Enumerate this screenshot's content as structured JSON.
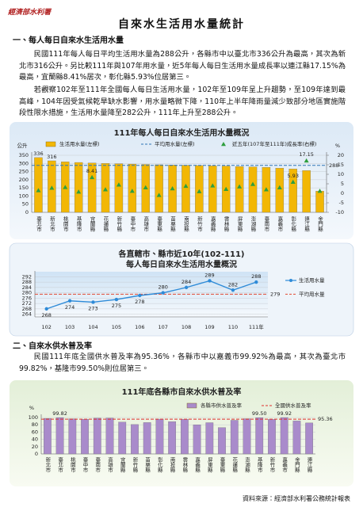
{
  "header": {
    "logo": "經濟部水利署",
    "title": "自來水生活用水量統計"
  },
  "sections": [
    {
      "heading": "一、每人每日自來水生活用水量",
      "paragraphs": [
        "民國111年每人每日平均生活用水量為288公升，各縣市中以臺北市336公升為最高，其次為新北市316公升。另比較111年與107年用水量，近5年每人每日生活用水量成長率以連江縣17.15%為最高，宜蘭縣8.41%居次，彰化縣5.93%位居第三。",
        "若觀察102年至111年全國每人每日生活用水量，102年至109年呈上升趨勢，至109年達到最高峰，104年因受氣候乾旱缺水影響，用水量略微下降，110年上半年降雨量減少致部分地區實施階段性限水措施，生活用水量降至282公升，111年上升至288公升。"
      ]
    },
    {
      "heading": "二、自來水供水普及率",
      "paragraphs": [
        "民國111年底全國供水普及率為95.36%，各縣市中以嘉義市99.92%為最高，其次為臺北市99.82%，基隆市99.50%則位居第三。"
      ]
    }
  ],
  "chart_data": [
    {
      "type": "combo",
      "title": "111年每人每日自來水生活用水量概況",
      "y_label": "公升",
      "y2_label": "%",
      "categories": [
        "臺北市",
        "新北市",
        "桃園市",
        "基隆市",
        "宜蘭縣",
        "花蓮縣",
        "新竹縣",
        "臺中市",
        "高雄市",
        "臺東縣",
        "苗栗縣",
        "南投縣",
        "新竹市",
        "嘉義縣",
        "雲林縣",
        "屏東縣",
        "澎湖縣",
        "臺南市",
        "嘉義市",
        "彰化縣",
        "連江縣",
        "金門縣"
      ],
      "series": [
        {
          "name": "生活用水量(左標)",
          "color": "#f2b705",
          "values": [
            336,
            316,
            310,
            306,
            303,
            300,
            298,
            296,
            294,
            292,
            290,
            289,
            287,
            285,
            284,
            281,
            279,
            276,
            271,
            266,
            256,
            130
          ],
          "value_labels": [
            "336",
            "316",
            null,
            null,
            null,
            null,
            null,
            null,
            null,
            null,
            null,
            null,
            null,
            null,
            null,
            null,
            null,
            null,
            null,
            null,
            null,
            null
          ]
        },
        {
          "name": "近五年(107年至111年)成長率(右標)",
          "color": "#2e9e3e",
          "axis": "y2",
          "marker": "triangle",
          "values": [
            1.5,
            2.8,
            3.2,
            0.8,
            8.41,
            2.0,
            4.5,
            1.2,
            3.0,
            -1.0,
            2.5,
            3.8,
            1.0,
            4.0,
            2.2,
            3.5,
            4.8,
            2.0,
            3.0,
            5.93,
            17.15,
            1.2
          ],
          "value_labels": [
            null,
            null,
            null,
            null,
            "8.41",
            null,
            null,
            null,
            null,
            null,
            null,
            null,
            null,
            null,
            null,
            null,
            null,
            null,
            null,
            "5.93",
            "17.15",
            null
          ]
        }
      ],
      "reference_line": {
        "name": "平均用水量(左標)",
        "color": "#2e75b6",
        "value": 288
      },
      "ylim": [
        0,
        350
      ],
      "yticks": [
        0,
        50,
        100,
        150,
        200,
        250,
        300,
        350
      ],
      "y2lim": [
        -10,
        20
      ],
      "y2ticks": [
        -10,
        -5,
        0,
        5,
        10,
        15,
        20
      ]
    },
    {
      "type": "line",
      "title": "各直轄市、縣市近10年(102-111)",
      "subtitle": "每人每日自來水生活用水量概況",
      "categories": [
        "102",
        "103",
        "104",
        "105",
        "106",
        "107",
        "108",
        "109",
        "110",
        "111年"
      ],
      "series": [
        {
          "name": "生活用水量",
          "color": "#2e8bd8",
          "values": [
            268,
            274,
            273,
            275,
            278,
            280,
            284,
            289,
            282,
            288
          ]
        }
      ],
      "reference_line": {
        "name": "平均用水量",
        "color": "#e24a33",
        "value": 279
      },
      "ylim": [
        262,
        294
      ],
      "yticks": [
        264,
        268,
        272,
        276,
        280,
        284,
        288,
        292
      ]
    },
    {
      "type": "bar",
      "title": "111年底各縣市自來水供水普及率",
      "y_label": "%",
      "categories": [
        "新北市",
        "臺北市",
        "桃園市",
        "臺中市",
        "臺南市",
        "高雄市",
        "宜蘭縣",
        "新竹縣",
        "苗栗縣",
        "彰化縣",
        "南投縣",
        "雲林縣",
        "嘉義縣",
        "屏東縣",
        "臺東縣",
        "花蓮縣",
        "澎湖縣",
        "基隆市",
        "新竹市",
        "嘉義市",
        "金門縣",
        "連江縣"
      ],
      "series": [
        {
          "name": "各縣市供水普及率",
          "color": "#a98bcb",
          "values": [
            97.6,
            99.82,
            96.5,
            95.3,
            98.1,
            98.3,
            87.3,
            80.7,
            86.1,
            95.6,
            88.5,
            95.1,
            80.1,
            85.8,
            72.4,
            92.4,
            96.7,
            99.5,
            94.8,
            99.92,
            90.5,
            85.1
          ],
          "value_labels": [
            null,
            "99.82",
            null,
            null,
            null,
            null,
            null,
            null,
            null,
            null,
            null,
            null,
            null,
            null,
            null,
            null,
            null,
            "99.50",
            null,
            "99.92",
            null,
            null
          ]
        }
      ],
      "reference_line": {
        "name": "全國供水普及率",
        "color": "#e0302e",
        "value": 95.36
      },
      "ylim": [
        0,
        100
      ],
      "yticks": [
        0,
        20,
        40,
        60,
        80,
        100
      ]
    }
  ],
  "footer": "資料來源：經濟部水利署公務統計報表"
}
